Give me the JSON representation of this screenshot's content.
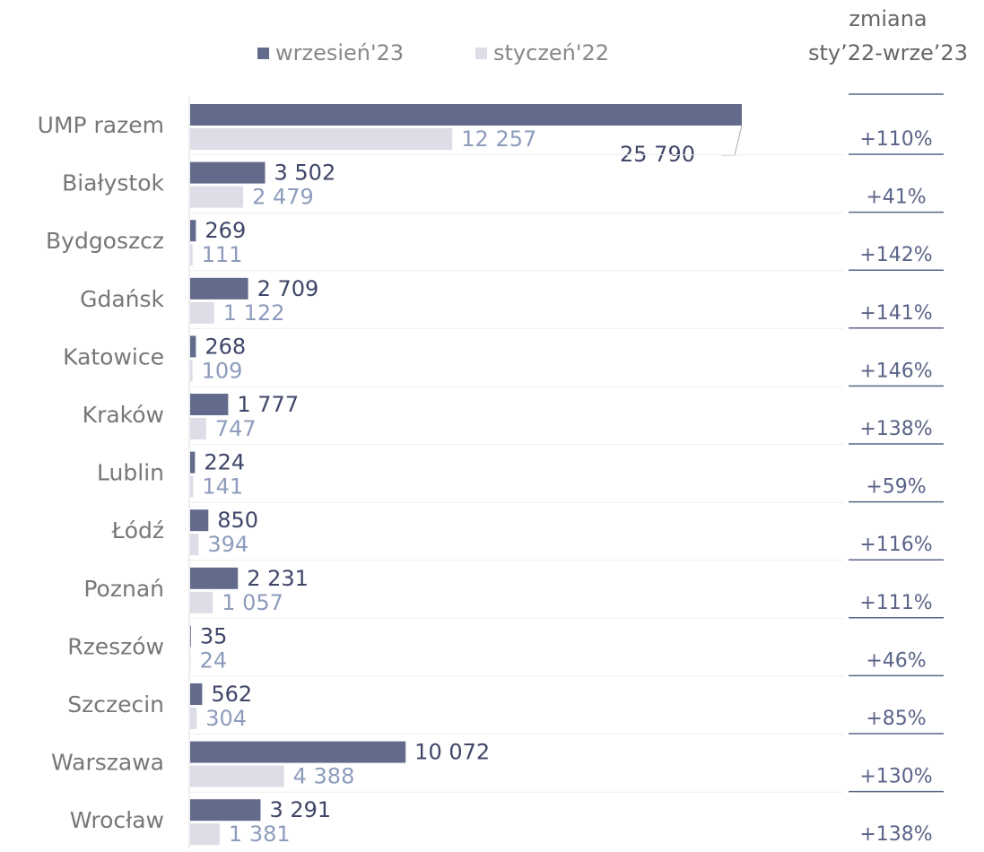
{
  "chart_data": {
    "type": "bar",
    "orientation": "horizontal",
    "categories": [
      "UMP razem",
      "Białystok",
      "Bydgoszcz",
      "Gdańsk",
      "Katowice",
      "Kraków",
      "Lublin",
      "Łódź",
      "Poznań",
      "Rzeszów",
      "Szczecin",
      "Warszawa",
      "Wrocław"
    ],
    "series": [
      {
        "name": "wrzesień'23",
        "color": "#636b8c",
        "label_color": "#3f4668",
        "values": [
          25790,
          3502,
          269,
          2709,
          268,
          1777,
          224,
          850,
          2231,
          35,
          562,
          10072,
          3291
        ],
        "value_labels": [
          "25 790",
          "3 502",
          "269",
          "2 709",
          "268",
          "1 777",
          "224",
          "850",
          "2 231",
          "35",
          "562",
          "10 072",
          "3 291"
        ]
      },
      {
        "name": "styczeń'22",
        "color": "#dcdde6",
        "label_color": "#8d9cbc",
        "values": [
          12257,
          2479,
          111,
          1122,
          109,
          747,
          141,
          394,
          1057,
          24,
          304,
          4388,
          1381
        ],
        "value_labels": [
          "12 257",
          "2 479",
          "111",
          "1 122",
          "109",
          "747",
          "141",
          "394",
          "1 057",
          "24",
          "304",
          "4 388",
          "1 381"
        ]
      }
    ],
    "change": {
      "header": [
        "zmiana",
        "sty’22-wrze’23"
      ],
      "labels": [
        "+110%",
        "+41%",
        "+142%",
        "+141%",
        "+146%",
        "+138%",
        "+59%",
        "+116%",
        "+111%",
        "+46%",
        "+85%",
        "+130%",
        "+138%"
      ]
    }
  }
}
